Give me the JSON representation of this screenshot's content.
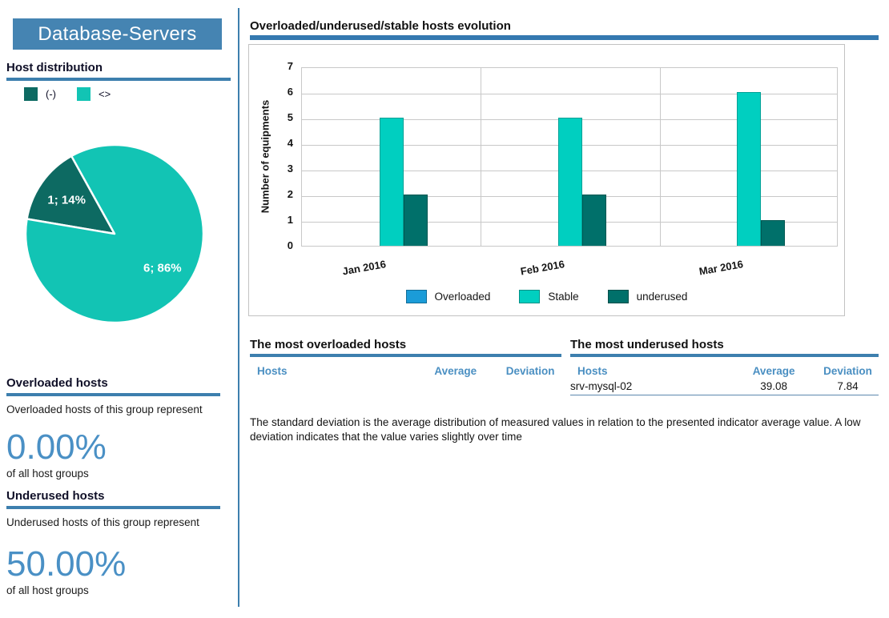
{
  "sidebar": {
    "title": "Database-Servers",
    "host_distribution_heading": "Host distribution",
    "overloaded": {
      "heading": "Overloaded hosts",
      "text": "Overloaded hosts of this group represent",
      "percent": "0.00%",
      "caption": "of all host groups"
    },
    "underused": {
      "heading": "Underused hosts",
      "text": "Underused hosts of this group represent",
      "percent": "50.00%",
      "caption": "of all host groups"
    }
  },
  "main": {
    "chart_heading": "Overloaded/underused/stable hosts evolution",
    "overloaded_table": {
      "heading": "The most overloaded hosts",
      "columns": [
        "Hosts",
        "Average",
        "Deviation"
      ],
      "rows": []
    },
    "underused_table": {
      "heading": "The most underused hosts",
      "columns": [
        "Hosts",
        "Average",
        "Deviation"
      ],
      "rows": [
        {
          "host": "srv-mysql-02",
          "average": "39.08",
          "deviation": "7.84"
        }
      ]
    },
    "note": "The standard deviation is the average distribution of measured values in relation to the presented indicator average value. A low  deviation indicates that the value varies slightly over time"
  },
  "chart_data": [
    {
      "type": "pie",
      "title": "Host distribution",
      "labels": [
        "(-)",
        "<>"
      ],
      "values": [
        1,
        6
      ],
      "slice_labels": [
        "1; 14%",
        "6; 86%"
      ],
      "colors": [
        "#0d6a62",
        "#12c4b4"
      ],
      "start_angle_deg": 119
    },
    {
      "type": "bar",
      "title": "Overloaded/underused/stable hosts evolution",
      "categories": [
        "Jan 2016",
        "Feb 2016",
        "Mar 2016"
      ],
      "series": [
        {
          "name": "Overloaded",
          "color": "#1b9cd8",
          "values": [
            0,
            0,
            0
          ]
        },
        {
          "name": "Stable",
          "color": "#00cfc0",
          "values": [
            5,
            5,
            6
          ]
        },
        {
          "name": "underused",
          "color": "#00706a",
          "values": [
            2,
            2,
            1
          ]
        }
      ],
      "ylabel": "Number of equipments",
      "ylim": [
        0,
        7
      ],
      "yticks": [
        0,
        1,
        2,
        3,
        4,
        5,
        6,
        7
      ],
      "grid": true,
      "legend_position": "bottom"
    }
  ],
  "colors": {
    "accent_blue": "#4584b2",
    "underline_blue": "#3d7fae",
    "text_blue": "#4a90c5",
    "table_header_blue": "#4a8fc2",
    "pie_dark": "#0d6a62",
    "pie_light": "#12c4b4",
    "bar_overloaded": "#1b9cd8",
    "bar_stable": "#00cfc0",
    "bar_underused": "#00706a"
  }
}
